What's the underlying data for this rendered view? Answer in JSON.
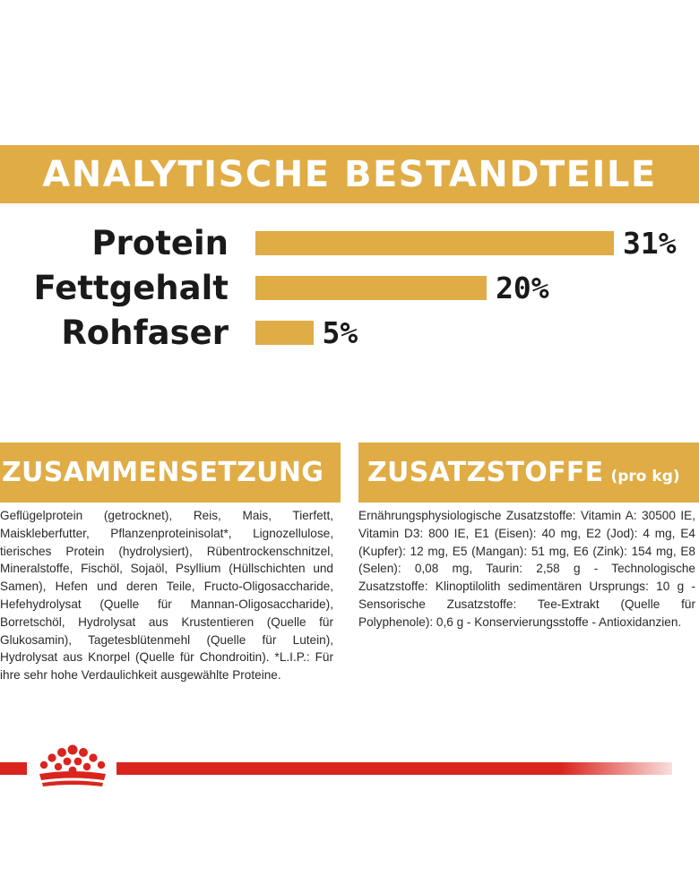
{
  "header": {
    "title": "ANALYTISCHE BESTANDTEILE"
  },
  "chart_data": {
    "type": "bar",
    "orientation": "horizontal",
    "categories": [
      "Protein",
      "Fettgehalt",
      "Rohfaser"
    ],
    "values": [
      31,
      20,
      5
    ],
    "value_labels": [
      "31%",
      "20%",
      "5%"
    ],
    "xlim": [
      0,
      31
    ],
    "bar_color": "#e0ac45"
  },
  "composition": {
    "title": "ZUSAMMENSETZUNG",
    "text": "Geflügelprotein (getrocknet), Reis, Mais, Tierfett, Maiskleberfutter, Pflanzenproteinisolat*, Lignozellulose, tierisches Protein (hydrolysiert), Rübentrockenschnitzel, Mineralstoffe, Fischöl, Sojaöl, Psyllium (Hüllschichten und Samen), Hefen und deren Teile, Fructo-Oligosaccharide, Hefehydrolysat (Quelle für Mannan-Oligosaccharide), Borretschöl, Hydrolysat aus Krustentieren (Quelle für Glukosamin), Tagetesblütenmehl (Quelle für Lutein), Hydrolysat aus Knorpel (Quelle für Chondroitin). *L.I.P.: Für ihre sehr hohe Verdaulichkeit ausgewählte Proteine."
  },
  "additives": {
    "title": "ZUSATZSTOFFE",
    "unit": "(pro kg)",
    "text": "Ernährungsphysiologische Zusatzstoffe: Vitamin A: 30500 IE, Vitamin D3: 800 IE, E1 (Eisen): 40 mg, E2 (Jod): 4 mg, E4 (Kupfer): 12 mg, E5 (Mangan): 51 mg, E6 (Zink): 154 mg, E8 (Selen): 0,08 mg, Taurin: 2,58 g - Technologische Zusatzstoffe: Klinoptilolith sedimentären Ursprungs: 10 g - Sensorische Zusatzstoffe: Tee-Extrakt (Quelle für Polyphenole): 0,6 g - Konservierungsstoffe - Antioxidanzien."
  },
  "footer": {
    "logo_icon": "royal-crown-icon",
    "line_color": "#d9251d"
  }
}
